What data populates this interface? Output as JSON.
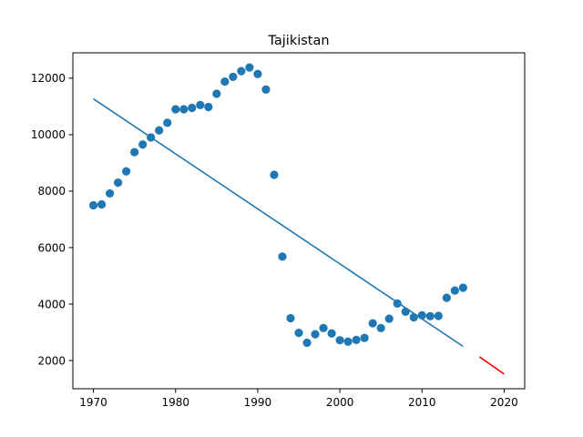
{
  "chart_data": {
    "type": "scatter",
    "title": "Tajikistan",
    "xlabel": "",
    "ylabel": "",
    "xlim": [
      1967.5,
      2022.5
    ],
    "ylim": [
      1000,
      12900
    ],
    "xticks": [
      1970,
      1980,
      1990,
      2000,
      2010,
      2020
    ],
    "yticks": [
      2000,
      4000,
      6000,
      8000,
      10000,
      12000
    ],
    "grid": false,
    "legend": "none",
    "colors": {
      "points": "#1f77b4",
      "trend": "#1f77b4",
      "forecast": "#ff0000"
    },
    "series": [
      {
        "kind": "scatter",
        "points": [
          [
            1970,
            7500
          ],
          [
            1971,
            7530
          ],
          [
            1972,
            7920
          ],
          [
            1973,
            8300
          ],
          [
            1974,
            8700
          ],
          [
            1975,
            9380
          ],
          [
            1976,
            9650
          ],
          [
            1977,
            9900
          ],
          [
            1978,
            10150
          ],
          [
            1979,
            10420
          ],
          [
            1980,
            10900
          ],
          [
            1981,
            10900
          ],
          [
            1982,
            10950
          ],
          [
            1983,
            11050
          ],
          [
            1984,
            10980
          ],
          [
            1985,
            11450
          ],
          [
            1986,
            11880
          ],
          [
            1987,
            12050
          ],
          [
            1988,
            12250
          ],
          [
            1989,
            12380
          ],
          [
            1990,
            12150
          ],
          [
            1991,
            11600
          ],
          [
            1992,
            8580
          ],
          [
            1993,
            5680
          ],
          [
            1994,
            3500
          ],
          [
            1995,
            2980
          ],
          [
            1996,
            2630
          ],
          [
            1997,
            2930
          ],
          [
            1998,
            3150
          ],
          [
            1999,
            2960
          ],
          [
            2000,
            2720
          ],
          [
            2001,
            2670
          ],
          [
            2002,
            2730
          ],
          [
            2003,
            2800
          ],
          [
            2004,
            3320
          ],
          [
            2005,
            3150
          ],
          [
            2006,
            3480
          ],
          [
            2007,
            4020
          ],
          [
            2008,
            3730
          ],
          [
            2009,
            3530
          ],
          [
            2010,
            3600
          ],
          [
            2011,
            3570
          ],
          [
            2012,
            3580
          ],
          [
            2013,
            4220
          ],
          [
            2014,
            4480
          ],
          [
            2015,
            4580
          ]
        ]
      },
      {
        "kind": "line",
        "points": [
          [
            1970,
            11270
          ],
          [
            2015,
            2500
          ]
        ]
      },
      {
        "kind": "line",
        "points": [
          [
            2017,
            2130
          ],
          [
            2020,
            1520
          ]
        ]
      }
    ]
  }
}
